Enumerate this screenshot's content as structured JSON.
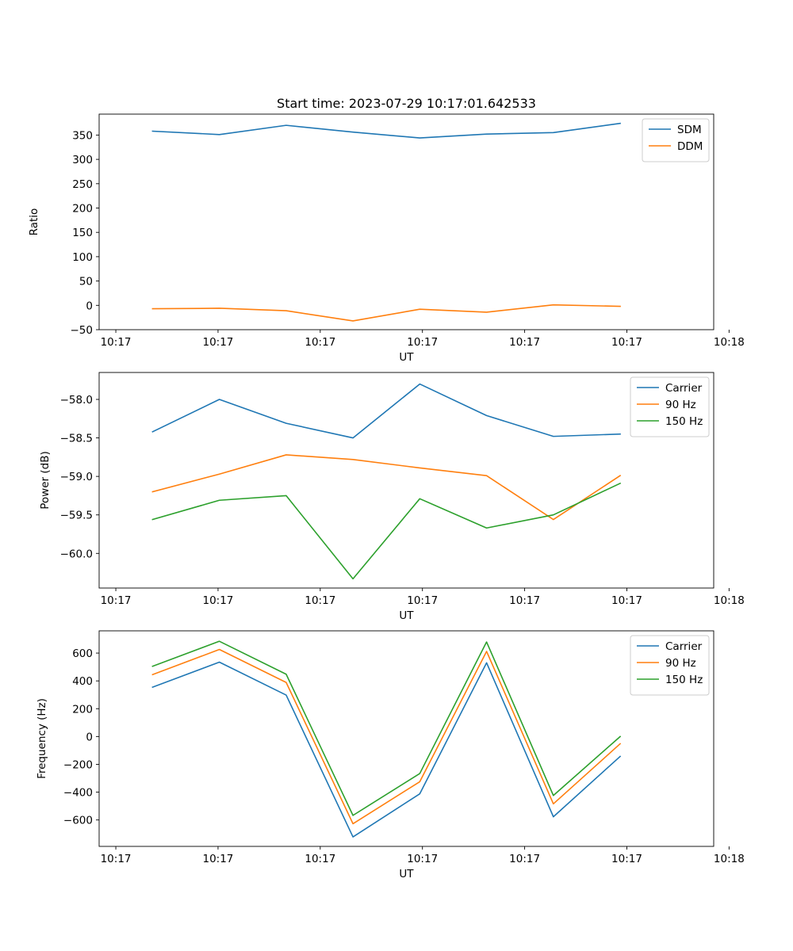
{
  "figure_title": "Start time: 2023-07-29 10:17:01.642533",
  "chart_data": [
    {
      "type": "line",
      "title": "Start time: 2023-07-29 10:17:01.642533",
      "xlabel": "UT",
      "ylabel": "Ratio",
      "x": [
        1,
        2,
        3,
        4,
        5,
        6,
        7,
        8
      ],
      "xlim": [
        0.2,
        9.4
      ],
      "xticks": [
        0.45,
        1.98,
        3.51,
        5.04,
        6.57,
        8.1,
        9.63
      ],
      "xtick_labels": [
        "10:17",
        "10:17",
        "10:17",
        "10:17",
        "10:17",
        "10:17",
        "10:18"
      ],
      "ylim": [
        -50,
        393
      ],
      "yticks": [
        -50,
        0,
        50,
        100,
        150,
        200,
        250,
        300,
        350
      ],
      "ytick_labels": [
        "−50",
        "0",
        "50",
        "100",
        "150",
        "200",
        "250",
        "300",
        "350"
      ],
      "legend": "top-right",
      "series": [
        {
          "name": "SDM",
          "color": "#1f77b4",
          "values": [
            358,
            351,
            370,
            356,
            344,
            352,
            355,
            374
          ]
        },
        {
          "name": "DDM",
          "color": "#ff7f0e",
          "values": [
            -7,
            -6,
            -11,
            -32,
            -8,
            -14,
            1,
            -2
          ]
        }
      ]
    },
    {
      "type": "line",
      "title": "",
      "xlabel": "UT",
      "ylabel": "Power (dB)",
      "x": [
        1,
        2,
        3,
        4,
        5,
        6,
        7,
        8
      ],
      "xlim": [
        0.2,
        9.4
      ],
      "xticks": [
        0.45,
        1.98,
        3.51,
        5.04,
        6.57,
        8.1,
        9.63
      ],
      "xtick_labels": [
        "10:17",
        "10:17",
        "10:17",
        "10:17",
        "10:17",
        "10:17",
        "10:18"
      ],
      "ylim": [
        -60.45,
        -57.65
      ],
      "yticks": [
        -60.0,
        -59.5,
        -59.0,
        -58.5,
        -58.0
      ],
      "ytick_labels": [
        "−60.0",
        "−59.5",
        "−59.0",
        "−58.5",
        "−58.0"
      ],
      "legend": "top-right",
      "series": [
        {
          "name": "Carrier",
          "color": "#1f77b4",
          "values": [
            -58.42,
            -58.0,
            -58.31,
            -58.5,
            -57.8,
            -58.21,
            -58.48,
            -58.45
          ]
        },
        {
          "name": "90 Hz",
          "color": "#ff7f0e",
          "values": [
            -59.2,
            -58.97,
            -58.72,
            -58.78,
            -58.89,
            -58.99,
            -59.56,
            -58.99
          ]
        },
        {
          "name": "150 Hz",
          "color": "#2ca02c",
          "values": [
            -59.56,
            -59.31,
            -59.25,
            -60.33,
            -59.29,
            -59.67,
            -59.5,
            -59.09
          ]
        }
      ]
    },
    {
      "type": "line",
      "title": "",
      "xlabel": "UT",
      "ylabel": "Frequency (Hz)",
      "x": [
        1,
        2,
        3,
        4,
        5,
        6,
        7,
        8
      ],
      "xlim": [
        0.2,
        9.4
      ],
      "xticks": [
        0.45,
        1.98,
        3.51,
        5.04,
        6.57,
        8.1,
        9.63
      ],
      "xtick_labels": [
        "10:17",
        "10:17",
        "10:17",
        "10:17",
        "10:17",
        "10:17",
        "10:18"
      ],
      "ylim": [
        -790,
        760
      ],
      "yticks": [
        -600,
        -400,
        -200,
        0,
        200,
        400,
        600
      ],
      "ytick_labels": [
        "−600",
        "−400",
        "−200",
        "0",
        "200",
        "400",
        "600"
      ],
      "legend": "top-right",
      "series": [
        {
          "name": "Carrier",
          "color": "#1f77b4",
          "values": [
            355,
            535,
            298,
            -722,
            -412,
            530,
            -577,
            -143
          ]
        },
        {
          "name": "90 Hz",
          "color": "#ff7f0e",
          "values": [
            445,
            626,
            389,
            -627,
            -325,
            612,
            -484,
            -52
          ]
        },
        {
          "name": "150 Hz",
          "color": "#2ca02c",
          "values": [
            505,
            685,
            448,
            -567,
            -266,
            680,
            -424,
            0
          ]
        }
      ]
    }
  ]
}
